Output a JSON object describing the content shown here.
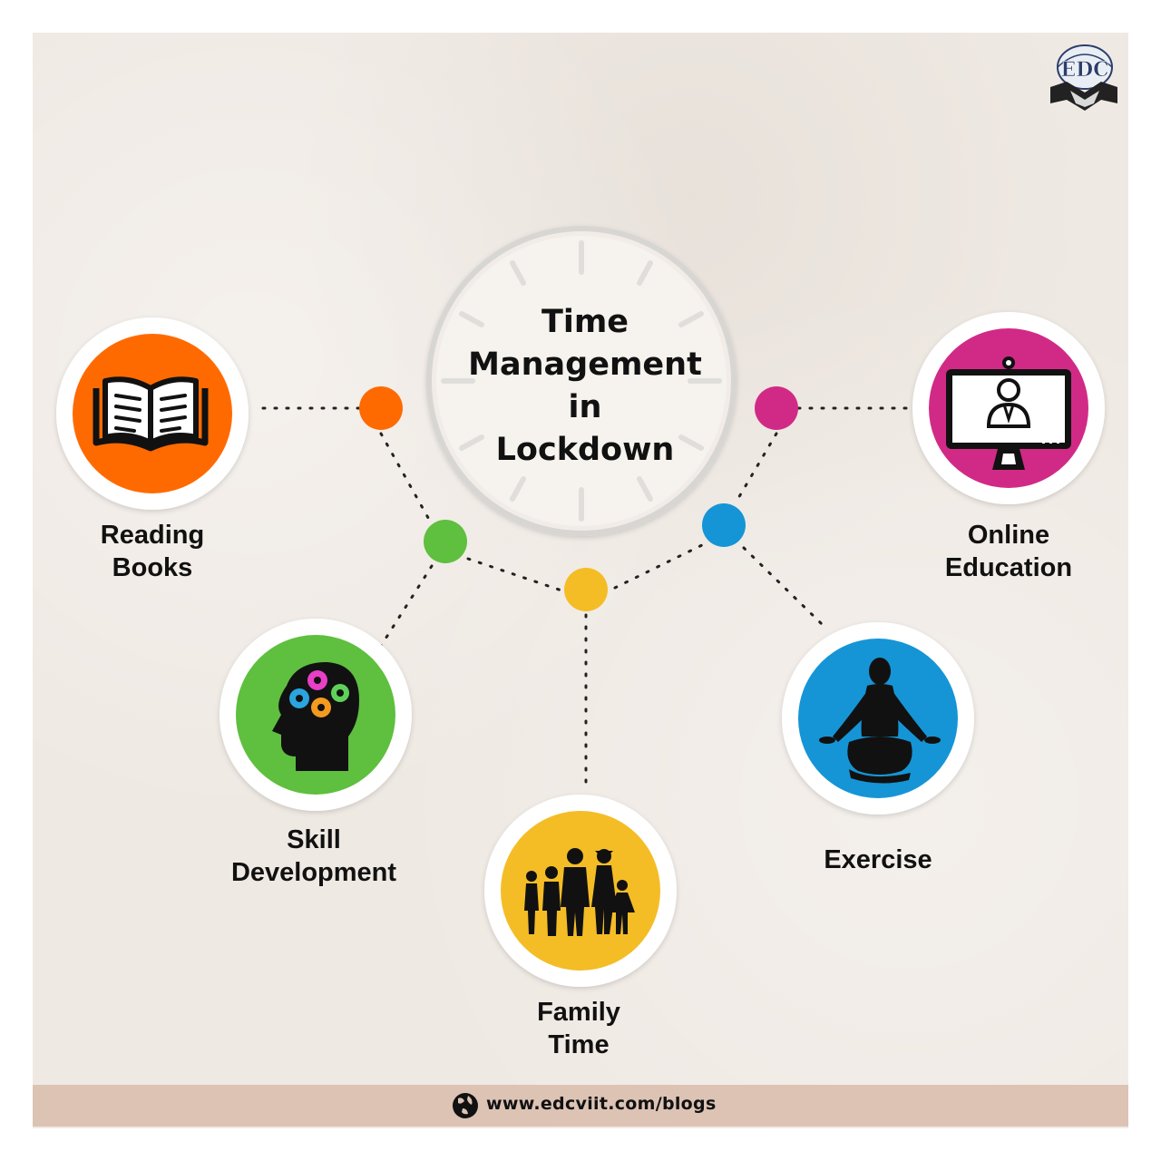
{
  "title": "Time\nManagement\nin\nLockdown",
  "nodes": [
    {
      "id": "reading-books",
      "label": "Reading\nBooks",
      "color": "#ff6a00",
      "icon": "open-book-icon"
    },
    {
      "id": "online-education",
      "label": "Online\nEducation",
      "color": "#d12a86",
      "icon": "video-monitor-icon"
    },
    {
      "id": "skill-development",
      "label": "Skill\nDevelopment",
      "color": "#5fbf3f",
      "icon": "head-gears-icon"
    },
    {
      "id": "exercise",
      "label": "Exercise",
      "color": "#1595d6",
      "icon": "meditation-icon"
    },
    {
      "id": "family-time",
      "label": "Family\nTime",
      "color": "#f4bd26",
      "icon": "family-silhouette-icon"
    }
  ],
  "connector_dot_colors": {
    "orange": "#ff6a00",
    "magenta": "#d12a86",
    "green": "#5fbf3f",
    "blue": "#1595d6",
    "yellow": "#f4bd26"
  },
  "logo": {
    "text": "EDC",
    "icon": "edc-handshake-logo-icon"
  },
  "footer": {
    "url": "www.edcviit.com/blogs",
    "icon": "globe-icon"
  }
}
